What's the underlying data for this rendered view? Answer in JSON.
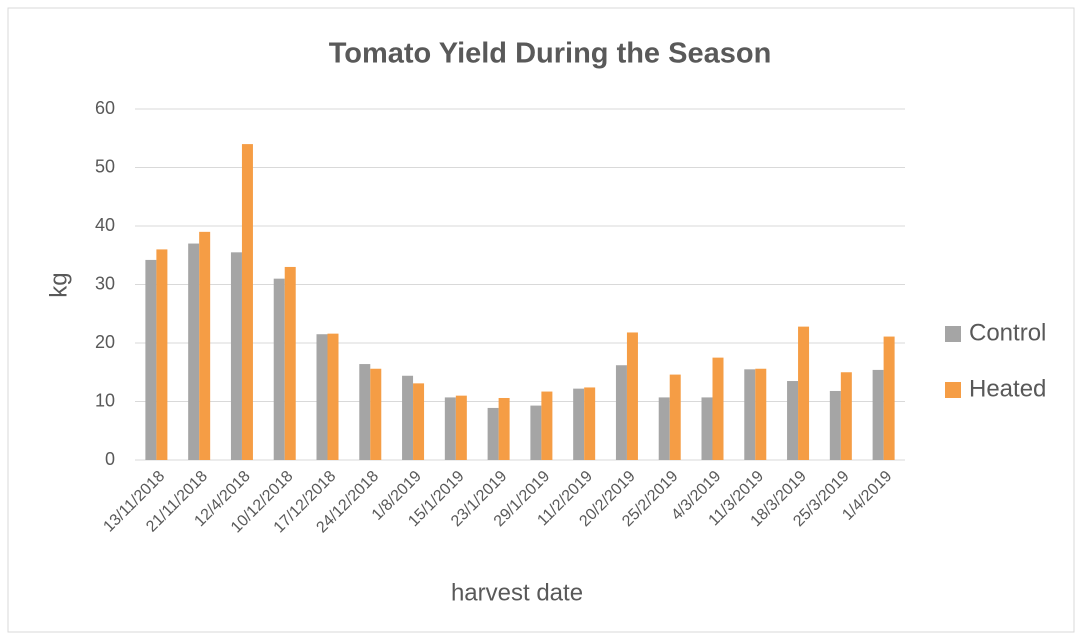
{
  "chart_data": {
    "type": "bar",
    "title": "Tomato Yield During the Season",
    "x_label": "harvest date",
    "y_label": "kg",
    "categories": [
      "13/11/2018",
      "21/11/2018",
      "12/4/2018",
      "10/12/2018",
      "17/12/2018",
      "24/12/2018",
      "1/8/2019",
      "15/1/2019",
      "23/1/2019",
      "29/1/2019",
      "11/2/2019",
      "20/2/2019",
      "25/2/2019",
      "4/3/2019",
      "11/3/2019",
      "18/3/2019",
      "25/3/2019",
      "1/4/2019"
    ],
    "series": [
      {
        "name": "Control",
        "color": "#a5a5a5",
        "values": [
          34.2,
          37,
          35.5,
          31,
          21.5,
          16.4,
          14.4,
          10.7,
          8.9,
          9.3,
          12.2,
          16.2,
          10.7,
          10.7,
          15.5,
          13.5,
          11.8,
          15.4
        ]
      },
      {
        "name": "Heated",
        "color": "#f59d45",
        "values": [
          36,
          39,
          54,
          33,
          21.6,
          15.6,
          13.1,
          11,
          10.6,
          11.7,
          12.4,
          21.8,
          14.6,
          17.5,
          15.6,
          22.8,
          15,
          21.1
        ]
      }
    ],
    "ylim": [
      0,
      60
    ],
    "yticks": [
      0,
      10,
      20,
      30,
      40,
      50,
      60
    ],
    "grid": true,
    "legend": "right"
  }
}
